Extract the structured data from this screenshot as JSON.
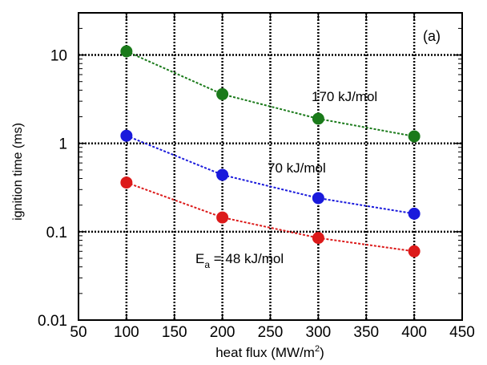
{
  "chart_data": {
    "type": "line",
    "panel_label": "(a)",
    "xlabel": {
      "main": "heat flux (MW/m",
      "sup": "2",
      "end": ")"
    },
    "ylabel": "ignition time (ms)",
    "xlim": [
      50,
      450
    ],
    "ylim": [
      0.01,
      30
    ],
    "yscale": "log",
    "grid": true,
    "x_ticks": [
      "50",
      "100",
      "150",
      "200",
      "250",
      "300",
      "350",
      "400",
      "450"
    ],
    "y_ticks": [
      "0.01",
      "0.1",
      "1",
      "10"
    ],
    "x": [
      100,
      200,
      300,
      400
    ],
    "series": [
      {
        "name": "170 kJ/mol",
        "color": "#1a7a1a",
        "values": [
          11.0,
          3.6,
          1.9,
          1.2
        ]
      },
      {
        "name": "70 kJ/mol",
        "color": "#1a1adc",
        "values": [
          1.22,
          0.44,
          0.24,
          0.16
        ]
      },
      {
        "name": "48 kJ/mol",
        "color": "#dc1a1a",
        "values": [
          0.36,
          0.145,
          0.085,
          0.06
        ]
      }
    ],
    "annotations": {
      "a170": "170 kJ/mol",
      "a70": "70 kJ/mol",
      "ea_prefix": "E",
      "ea_sub": "a",
      "ea_rest": " = 48 kJ/mol"
    }
  }
}
